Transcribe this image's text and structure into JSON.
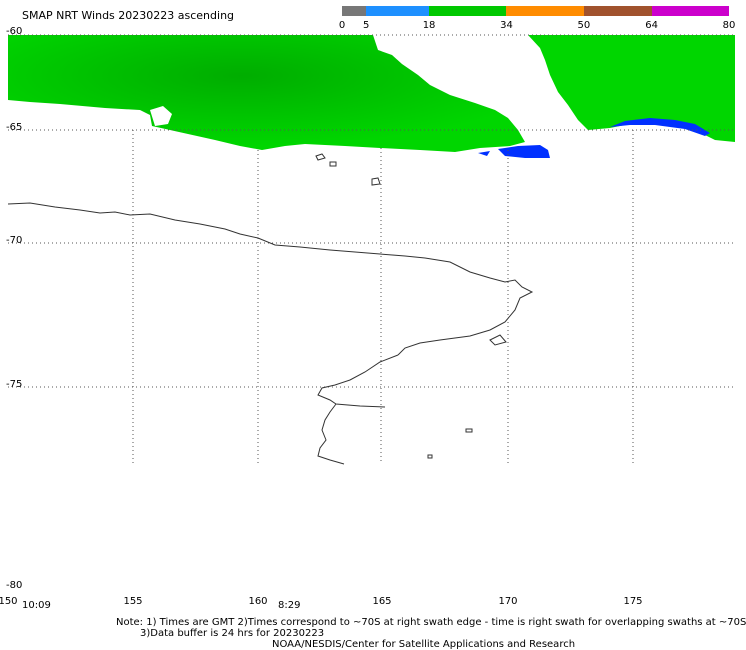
{
  "title": "SMAP NRT Winds 20230223 ascending",
  "colorbar": {
    "ticks": [
      "0",
      "5",
      "18",
      "34",
      "50",
      "64",
      "80"
    ],
    "segments": [
      {
        "from": 0,
        "to": 5,
        "color": "#777777"
      },
      {
        "from": 5,
        "to": 18,
        "color": "#1e90ff"
      },
      {
        "from": 18,
        "to": 34,
        "color": "#00c800"
      },
      {
        "from": 34,
        "to": 50,
        "color": "#ff8c00"
      },
      {
        "from": 50,
        "to": 64,
        "color": "#a0522d"
      },
      {
        "from": 64,
        "to": 80,
        "color": "#cc00cc"
      }
    ]
  },
  "axes": {
    "lat_labels": [
      "-60",
      "-65",
      "-70",
      "-75",
      "-80"
    ],
    "lon_labels": [
      "150",
      "155",
      "160",
      "165",
      "170",
      "175"
    ]
  },
  "times": [
    "10:09",
    "8:29"
  ],
  "notes": {
    "line1": "Note: 1) Times are GMT 2)Times correspond to ~70S at right swath edge - time is right swath for overlapping swaths at ~70S",
    "line2": "3)Data buffer is 24 hrs for 20230223",
    "line3": "NOAA/NESDIS/Center for Satellite Applications and Research"
  },
  "colors": {
    "wind_green": "#00d600",
    "wind_green_dark": "#00b400",
    "wind_blue": "#0030ff",
    "coastline": "#333333",
    "grid": "#555555"
  }
}
